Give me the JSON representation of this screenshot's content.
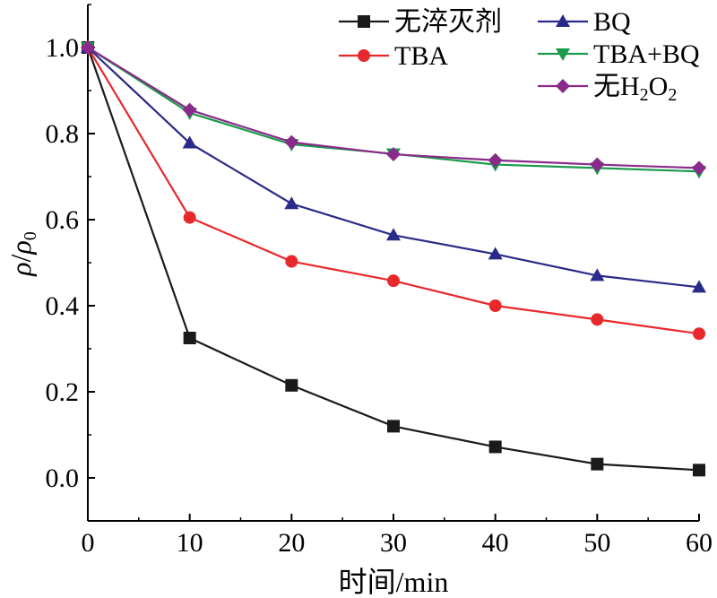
{
  "chart_data": {
    "type": "line",
    "x": [
      0,
      10,
      20,
      30,
      40,
      50,
      60
    ],
    "xticks": [
      "0",
      "10",
      "20",
      "30",
      "40",
      "50",
      "60"
    ],
    "yticks": [
      "0.0",
      "0.2",
      "0.4",
      "0.6",
      "0.8",
      "1.0"
    ],
    "xlim": [
      0,
      60
    ],
    "ylim": [
      -0.1,
      1.1
    ],
    "xlabel": "时间/min",
    "ylabel": "ρ/ρ0",
    "legend_position": "top-right",
    "grid": false,
    "series": [
      {
        "name": "无淬灭剂",
        "color": "#1a1a1a",
        "marker": "square",
        "values": [
          1.0,
          0.325,
          0.215,
          0.12,
          0.072,
          0.032,
          0.018
        ]
      },
      {
        "name": "TBA",
        "color": "#e8292c",
        "marker": "circle",
        "values": [
          1.0,
          0.605,
          0.503,
          0.458,
          0.4,
          0.368,
          0.335
        ]
      },
      {
        "name": "BQ",
        "color": "#2a2a8a",
        "marker": "triangle-up",
        "values": [
          1.0,
          0.778,
          0.637,
          0.564,
          0.52,
          0.47,
          0.443
        ]
      },
      {
        "name": "TBA+BQ",
        "color": "#1a9a4a",
        "marker": "triangle-down",
        "values": [
          1.0,
          0.848,
          0.775,
          0.753,
          0.728,
          0.72,
          0.712
        ]
      },
      {
        "name": "无H2O2",
        "color": "#8a2a8a",
        "marker": "diamond",
        "values": [
          1.0,
          0.855,
          0.78,
          0.752,
          0.738,
          0.728,
          0.72
        ]
      }
    ]
  }
}
